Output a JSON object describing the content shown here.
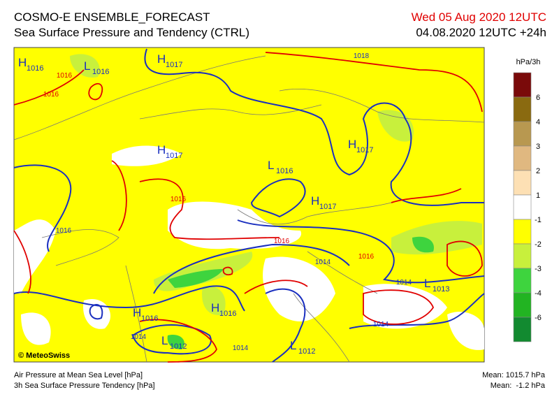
{
  "header": {
    "title": "COSMO-E ENSEMBLE_FORECAST",
    "subtitle": "Sea Surface Pressure and Tendency (CTRL)",
    "valid_time": "Wed 05 Aug 2020 12UTC",
    "run": "04.08.2020 12UTC +24h"
  },
  "legend": {
    "unit": "hPa/3h",
    "ticks": [
      6,
      4,
      3,
      2,
      1,
      -1,
      -2,
      -3,
      -4,
      -6
    ],
    "colors": [
      "#7a0a0a",
      "#8a6a10",
      "#b89850",
      "#e0b880",
      "#fde0b4",
      "#ffffff",
      "#ffff00",
      "#c8f03c",
      "#3ed43e",
      "#22b422",
      "#128a30"
    ]
  },
  "map": {
    "centers": [
      {
        "type": "H",
        "value": "1016"
      },
      {
        "type": "L",
        "value": "1016"
      },
      {
        "type": "H",
        "value": "1017"
      },
      {
        "type": "H",
        "value": "1017"
      },
      {
        "type": "L",
        "value": "1016"
      },
      {
        "type": "H",
        "value": "1017"
      },
      {
        "type": "H",
        "value": "1017"
      },
      {
        "type": "L",
        "value": "1013"
      },
      {
        "type": "H",
        "value": "1016"
      },
      {
        "type": "H",
        "value": "1016"
      },
      {
        "type": "L",
        "value": "1012"
      },
      {
        "type": "L",
        "value": "1012"
      }
    ],
    "isobar_labels": [
      "1018",
      "1016",
      "1016",
      "1016",
      "1016",
      "1016",
      "1014",
      "1016",
      "1014",
      "1014",
      "1014",
      "1014"
    ],
    "credit": "© MeteoSwiss"
  },
  "footer": {
    "left": [
      "Air Pressure at Mean Sea Level [hPa]",
      "3h Sea Surface Pressure Tendency [hPa]"
    ],
    "right": [
      "Mean: 1015.7 hPa",
      "Mean:  -1.2 hPa"
    ]
  }
}
